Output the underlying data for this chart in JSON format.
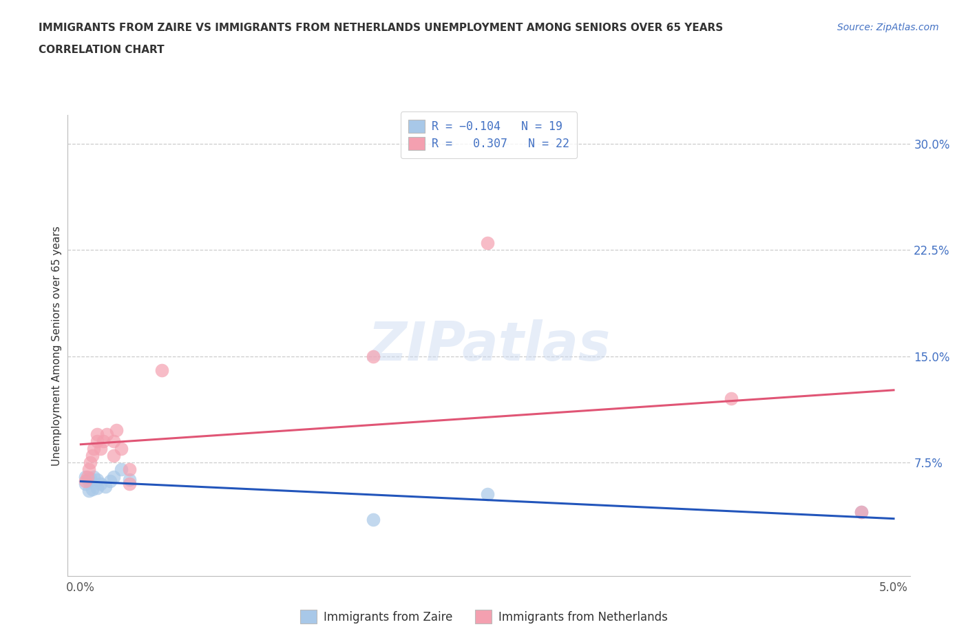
{
  "title_line1": "IMMIGRANTS FROM ZAIRE VS IMMIGRANTS FROM NETHERLANDS UNEMPLOYMENT AMONG SENIORS OVER 65 YEARS",
  "title_line2": "CORRELATION CHART",
  "source": "Source: ZipAtlas.com",
  "ylabel": "Unemployment Among Seniors over 65 years",
  "xlim": [
    0.0,
    0.05
  ],
  "ylim": [
    0.0,
    0.32
  ],
  "yticks": [
    0.075,
    0.15,
    0.225,
    0.3
  ],
  "ytick_labels": [
    "7.5%",
    "15.0%",
    "22.5%",
    "30.0%"
  ],
  "xticks": [
    0.0,
    0.01,
    0.02,
    0.03,
    0.04,
    0.05
  ],
  "xtick_labels": [
    "0.0%",
    "",
    "",
    "",
    "",
    "5.0%"
  ],
  "color_zaire": "#a8c8e8",
  "color_netherlands": "#f4a0b0",
  "line_color_zaire": "#2255bb",
  "line_color_netherlands": "#e05575",
  "background_color": "#ffffff",
  "watermark": "ZIPatlas",
  "zaire_x": [
    0.0003,
    0.0003,
    0.0004,
    0.0005,
    0.0005,
    0.0006,
    0.0007,
    0.0008,
    0.001,
    0.001,
    0.0012,
    0.0015,
    0.0018,
    0.002,
    0.0025,
    0.003,
    0.018,
    0.025,
    0.048
  ],
  "zaire_y": [
    0.065,
    0.06,
    0.063,
    0.062,
    0.055,
    0.064,
    0.056,
    0.065,
    0.063,
    0.057,
    0.06,
    0.058,
    0.062,
    0.065,
    0.07,
    0.063,
    0.035,
    0.053,
    0.04
  ],
  "netherlands_x": [
    0.0003,
    0.0004,
    0.0005,
    0.0006,
    0.0007,
    0.0008,
    0.001,
    0.001,
    0.0012,
    0.0014,
    0.0016,
    0.002,
    0.002,
    0.0022,
    0.0025,
    0.003,
    0.003,
    0.005,
    0.018,
    0.025,
    0.04,
    0.048
  ],
  "netherlands_y": [
    0.062,
    0.065,
    0.07,
    0.075,
    0.08,
    0.085,
    0.09,
    0.095,
    0.085,
    0.09,
    0.095,
    0.08,
    0.09,
    0.098,
    0.085,
    0.06,
    0.07,
    0.14,
    0.15,
    0.23,
    0.12,
    0.04
  ],
  "marker_size": 200,
  "title_fontsize": 11,
  "tick_fontsize": 12
}
